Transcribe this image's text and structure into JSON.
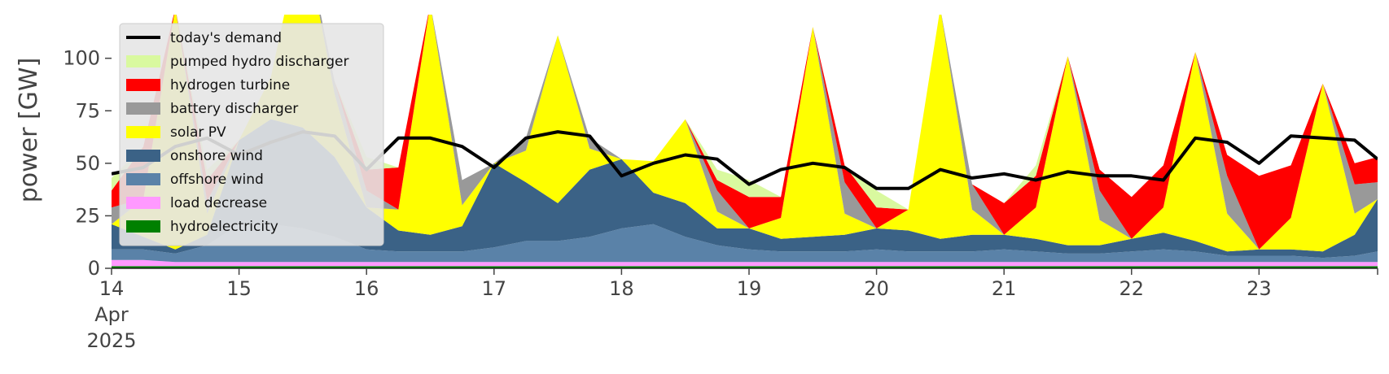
{
  "chart_data": {
    "type": "area",
    "title": "",
    "ylabel": "power [GW]",
    "xlabel": "",
    "ylim": [
      0,
      120
    ],
    "xlim": [
      14,
      23.93
    ],
    "grid": false,
    "legend_position": "top-left",
    "y_ticks": [
      0,
      25,
      50,
      75,
      100
    ],
    "x_ticks": [
      {
        "value": 14,
        "lines": [
          "14",
          "Apr",
          "2025"
        ]
      },
      {
        "value": 15,
        "lines": [
          "15"
        ]
      },
      {
        "value": 16,
        "lines": [
          "16"
        ]
      },
      {
        "value": 17,
        "lines": [
          "17"
        ]
      },
      {
        "value": 18,
        "lines": [
          "18"
        ]
      },
      {
        "value": 19,
        "lines": [
          "19"
        ]
      },
      {
        "value": 20,
        "lines": [
          "20"
        ]
      },
      {
        "value": 21,
        "lines": [
          "21"
        ]
      },
      {
        "value": 22,
        "lines": [
          "22"
        ]
      },
      {
        "value": 23,
        "lines": [
          "23"
        ]
      }
    ],
    "x": [
      14.0,
      14.25,
      14.5,
      14.75,
      15.0,
      15.25,
      15.5,
      15.75,
      16.0,
      16.25,
      16.5,
      16.75,
      17.0,
      17.25,
      17.5,
      17.75,
      18.0,
      18.25,
      18.5,
      18.75,
      19.0,
      19.25,
      19.5,
      19.75,
      20.0,
      20.25,
      20.5,
      20.75,
      21.0,
      21.25,
      21.5,
      21.75,
      22.0,
      22.25,
      22.5,
      22.75,
      23.0,
      23.25,
      23.5,
      23.75,
      23.93
    ],
    "series": [
      {
        "name": "hydroelectricity",
        "color": "#008000",
        "values": [
          1,
          1,
          1,
          1,
          1,
          1,
          1,
          1,
          1,
          1,
          1,
          1,
          1,
          1,
          1,
          1,
          1,
          1,
          1,
          1,
          1,
          1,
          1,
          1,
          1,
          1,
          1,
          1,
          1,
          1,
          1,
          1,
          1,
          1,
          1,
          1,
          1,
          1,
          1,
          1,
          1
        ]
      },
      {
        "name": "load decrease",
        "color": "#ff99ff",
        "values": [
          3,
          3,
          2,
          2,
          2,
          2,
          2,
          2,
          2,
          2,
          2,
          2,
          2,
          2,
          2,
          2,
          2,
          2,
          2,
          2,
          2,
          2,
          2,
          2,
          2,
          2,
          2,
          2,
          2,
          2,
          2,
          2,
          2,
          2,
          2,
          2,
          2,
          2,
          2,
          2,
          2
        ]
      },
      {
        "name": "offshore wind",
        "color": "#5a82a8",
        "values": [
          5,
          5,
          4,
          8,
          18,
          18,
          16,
          12,
          6,
          5,
          5,
          5,
          7,
          10,
          10,
          12,
          16,
          18,
          12,
          8,
          6,
          5,
          5,
          5,
          6,
          5,
          5,
          5,
          6,
          5,
          4,
          4,
          5,
          6,
          5,
          3,
          3,
          3,
          2,
          3,
          5
        ]
      },
      {
        "name": "onshore wind",
        "color": "#3b6286",
        "values": [
          12,
          6,
          2,
          5,
          40,
          50,
          48,
          38,
          20,
          10,
          8,
          12,
          40,
          28,
          18,
          32,
          33,
          15,
          16,
          8,
          10,
          6,
          7,
          8,
          10,
          10,
          6,
          8,
          7,
          6,
          4,
          4,
          6,
          8,
          5,
          2,
          3,
          3,
          3,
          10,
          25
        ]
      },
      {
        "name": "solar PV",
        "color": "#ffff00",
        "values": [
          0,
          18,
          115,
          10,
          0,
          20,
          95,
          30,
          0,
          10,
          110,
          10,
          0,
          15,
          80,
          10,
          0,
          15,
          40,
          8,
          0,
          10,
          100,
          10,
          0,
          10,
          110,
          12,
          0,
          15,
          90,
          12,
          0,
          12,
          90,
          18,
          0,
          15,
          80,
          10,
          0
        ]
      },
      {
        "name": "battery discharger",
        "color": "#999999",
        "values": [
          8,
          0,
          0,
          6,
          0,
          0,
          0,
          6,
          8,
          0,
          0,
          12,
          0,
          6,
          0,
          5,
          0,
          0,
          0,
          10,
          0,
          0,
          0,
          15,
          0,
          0,
          0,
          12,
          0,
          0,
          0,
          14,
          0,
          0,
          0,
          18,
          0,
          0,
          0,
          14,
          8
        ]
      },
      {
        "name": "hydrogen turbine",
        "color": "#ff0000",
        "values": [
          8,
          25,
          0,
          10,
          0,
          0,
          0,
          0,
          10,
          20,
          0,
          0,
          0,
          0,
          0,
          0,
          0,
          0,
          0,
          5,
          15,
          10,
          0,
          8,
          10,
          0,
          0,
          0,
          15,
          15,
          0,
          10,
          20,
          20,
          0,
          10,
          35,
          25,
          0,
          10,
          12
        ]
      },
      {
        "name": "pumped hydro discharger",
        "color": "#d9f99f",
        "values": [
          6,
          0,
          0,
          5,
          0,
          0,
          0,
          0,
          6,
          0,
          0,
          0,
          0,
          0,
          0,
          0,
          0,
          0,
          0,
          5,
          8,
          0,
          0,
          0,
          8,
          0,
          0,
          0,
          0,
          5,
          0,
          0,
          0,
          0,
          0,
          0,
          0,
          0,
          0,
          0,
          0
        ]
      }
    ],
    "demand": {
      "name": "today's demand",
      "color": "#000000",
      "values": [
        45,
        48,
        58,
        62,
        54,
        60,
        65,
        63,
        47,
        62,
        62,
        58,
        48,
        62,
        65,
        63,
        44,
        50,
        54,
        52,
        40,
        47,
        50,
        48,
        38,
        38,
        47,
        43,
        45,
        42,
        46,
        44,
        44,
        42,
        62,
        60,
        50,
        63,
        62,
        61,
        52
      ]
    }
  }
}
